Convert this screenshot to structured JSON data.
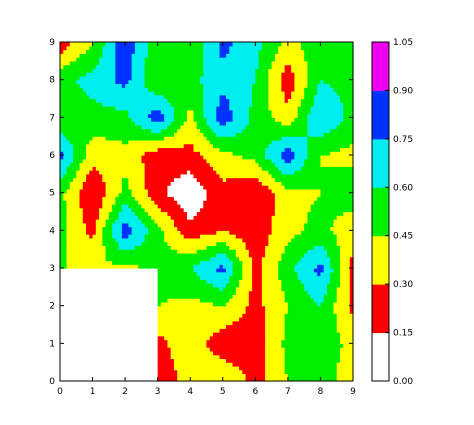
{
  "chart_data": {
    "type": "heatmap",
    "subtype": "filled-contour",
    "title": "",
    "xlabel": "",
    "ylabel": "",
    "xlim": [
      0,
      9
    ],
    "ylim": [
      0,
      9
    ],
    "x_ticks": [
      "0",
      "1",
      "2",
      "3",
      "4",
      "5",
      "6",
      "7",
      "8",
      "9"
    ],
    "y_ticks": [
      "0",
      "1",
      "2",
      "3",
      "4",
      "5",
      "6",
      "7",
      "8",
      "9"
    ],
    "grid": false,
    "masked_region": "white area at lower-left (x 0–3, y 0–3) and below a central hole near (4.5, 4.7)",
    "levels": [
      0.0,
      0.15,
      0.3,
      0.45,
      0.6,
      0.75,
      0.9,
      1.05
    ],
    "colorbar_labels": [
      "0.00",
      "0.15",
      "0.30",
      "0.45",
      "0.60",
      "0.75",
      "0.90",
      "1.05"
    ],
    "band_colors": [
      "#ffffff",
      "#ff0000",
      "#ffff00",
      "#00ee00",
      "#00eeee",
      "#0033ff",
      "#ee00ee"
    ],
    "x": [
      0,
      1,
      2,
      3,
      4,
      5,
      6,
      7,
      8,
      9
    ],
    "y": [
      0,
      1,
      2,
      3,
      4,
      5,
      6,
      7,
      8,
      9
    ],
    "z": [
      [
        null,
        null,
        null,
        0.2,
        0.35,
        0.45,
        0.25,
        0.45,
        0.6,
        0.3
      ],
      [
        null,
        null,
        null,
        0.25,
        0.4,
        0.2,
        0.2,
        0.5,
        0.55,
        0.4
      ],
      [
        null,
        null,
        null,
        0.45,
        0.4,
        0.45,
        0.25,
        0.45,
        0.6,
        0.25
      ],
      [
        0.45,
        0.45,
        0.4,
        0.5,
        0.6,
        0.8,
        0.25,
        0.55,
        0.8,
        0.25
      ],
      [
        0.5,
        0.25,
        0.85,
        0.5,
        0.2,
        0.3,
        0.2,
        0.4,
        0.5,
        0.35
      ],
      [
        0.5,
        0.15,
        0.5,
        0.2,
        0.02,
        0.25,
        0.15,
        0.4,
        0.45,
        0.55
      ],
      [
        0.8,
        0.35,
        0.4,
        0.2,
        0.25,
        0.4,
        0.5,
        0.85,
        0.45,
        0.4
      ],
      [
        0.45,
        0.55,
        0.55,
        0.85,
        0.4,
        0.85,
        0.55,
        0.35,
        0.75,
        0.55
      ],
      [
        0.55,
        0.65,
        0.8,
        0.45,
        0.55,
        0.7,
        0.6,
        0.2,
        0.6,
        0.55
      ],
      [
        0.2,
        0.45,
        0.85,
        0.5,
        0.45,
        0.8,
        0.65,
        0.4,
        0.55,
        0.6
      ]
    ]
  }
}
